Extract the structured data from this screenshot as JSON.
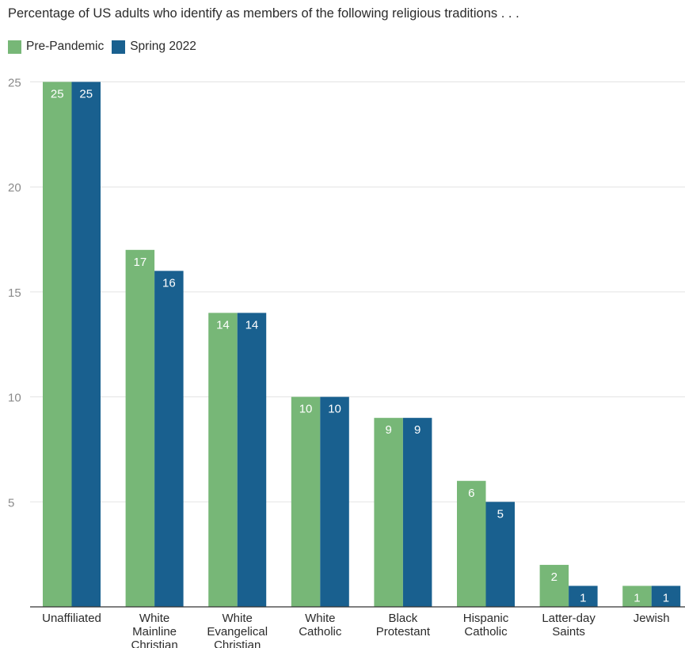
{
  "chart_data": {
    "type": "bar",
    "title": "Percentage of US adults who identify as members of the following religious traditions . . .",
    "categories": [
      [
        "Unaffiliated"
      ],
      [
        "White",
        "Mainline",
        "Christian"
      ],
      [
        "White",
        "Evangelical",
        "Christian"
      ],
      [
        "White",
        "Catholic"
      ],
      [
        "Black",
        "Protestant"
      ],
      [
        "Hispanic",
        "Catholic"
      ],
      [
        "Latter-day",
        "Saints"
      ],
      [
        "Jewish"
      ]
    ],
    "series": [
      {
        "name": "Pre-Pandemic",
        "color": "#77b777",
        "values": [
          25,
          17,
          14,
          10,
          9,
          6,
          2,
          1
        ]
      },
      {
        "name": "Spring 2022",
        "color": "#19608f",
        "values": [
          25,
          16,
          14,
          10,
          9,
          5,
          1,
          1
        ]
      }
    ],
    "yticks": [
      5,
      10,
      15,
      20,
      25
    ],
    "ylim": [
      0,
      25
    ],
    "grid": true,
    "legend_position": "top-left"
  }
}
